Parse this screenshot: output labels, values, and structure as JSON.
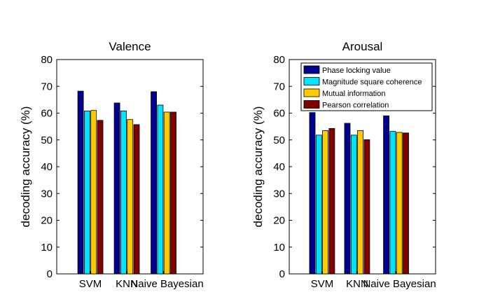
{
  "chart_data": [
    {
      "type": "bar",
      "title": "Valence",
      "ylabel": "decoding accuracy (%)",
      "xlabel": "",
      "categories": [
        "SVM",
        "KNN",
        "Naive Bayesian"
      ],
      "ylim": [
        0,
        80
      ],
      "yticks": [
        "0",
        "10",
        "20",
        "30",
        "40",
        "50",
        "60",
        "70",
        "80"
      ],
      "grid": false,
      "series": [
        {
          "name": "Phase locking value",
          "color": "#00008f",
          "values": [
            68.2,
            63.8,
            68.0
          ]
        },
        {
          "name": "Magnitude  square coherence",
          "color": "#00e5ff",
          "values": [
            60.8,
            60.8,
            63.0
          ]
        },
        {
          "name": "Mutual information",
          "color": "#ffcc00",
          "values": [
            61.0,
            57.6,
            60.4
          ]
        },
        {
          "name": "Pearson correlation",
          "color": "#800000",
          "values": [
            57.3,
            55.7,
            60.4
          ]
        }
      ]
    },
    {
      "type": "bar",
      "title": "Arousal",
      "ylabel": "decoding accuracy (%)",
      "xlabel": "",
      "categories": [
        "SVM",
        "KNN",
        "Naive Bayesian"
      ],
      "ylim": [
        0,
        80
      ],
      "yticks": [
        "0",
        "10",
        "20",
        "30",
        "40",
        "50",
        "60",
        "70",
        "80"
      ],
      "grid": false,
      "legend": "top",
      "series": [
        {
          "name": "Phase locking value",
          "color": "#00008f",
          "values": [
            60.2,
            56.2,
            59.0
          ]
        },
        {
          "name": "Magnitude  square coherence",
          "color": "#00e5ff",
          "values": [
            51.8,
            51.8,
            53.2
          ]
        },
        {
          "name": "Mutual information",
          "color": "#ffcc00",
          "values": [
            53.5,
            53.5,
            52.8
          ]
        },
        {
          "name": "Pearson correlation",
          "color": "#800000",
          "values": [
            54.3,
            50.1,
            52.6
          ]
        }
      ]
    }
  ]
}
